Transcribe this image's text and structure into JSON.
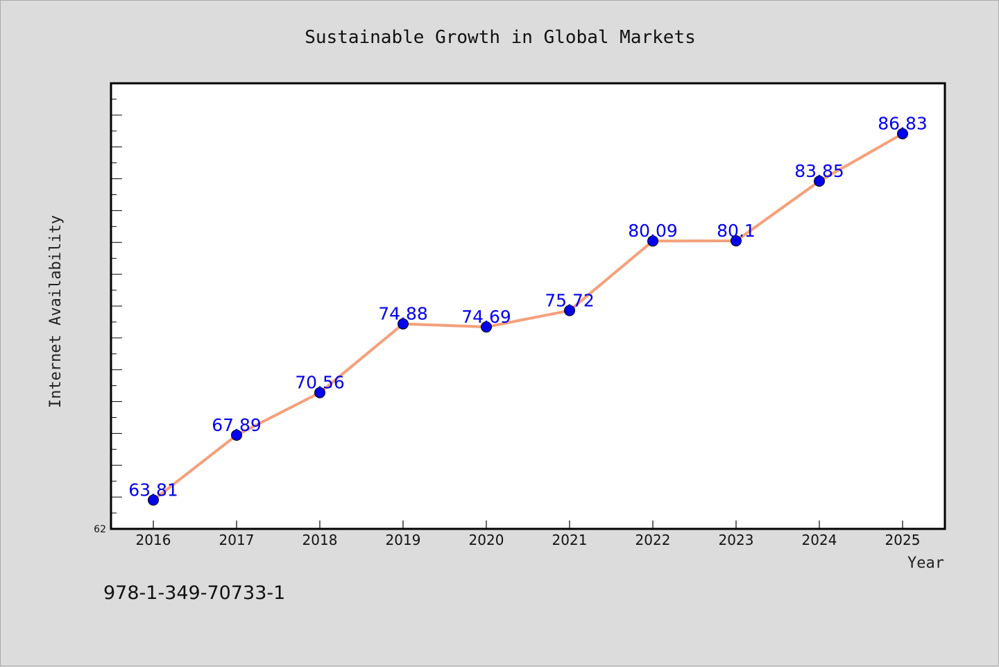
{
  "chart_data": {
    "type": "line",
    "title": "Sustainable Growth in Global Markets",
    "xlabel": "Year",
    "ylabel": "Internet Availability",
    "categories": [
      "2016",
      "2017",
      "2018",
      "2019",
      "2020",
      "2021",
      "2022",
      "2023",
      "2024",
      "2025"
    ],
    "series": [
      {
        "values": [
          63.81,
          67.89,
          70.56,
          74.88,
          74.69,
          75.72,
          80.09,
          80.1,
          83.85,
          86.83
        ],
        "labels": [
          "63.81",
          "67.89",
          "70.56",
          "74.88",
          "74.69",
          "75.72",
          "80.09",
          "80.1",
          "83.85",
          "86.83"
        ],
        "line_color": "#f4a07a",
        "marker_color": "#0000ee"
      }
    ],
    "ylim": [
      62,
      90
    ],
    "yticks_labeled": [
      "62"
    ],
    "grid": false,
    "legend": "none"
  },
  "footer": {
    "isbn": "978-1-349-70733-1"
  },
  "colors": {
    "background": "#dcdcdc",
    "plot_background": "#ffffff",
    "label_color": "#0000ee"
  }
}
